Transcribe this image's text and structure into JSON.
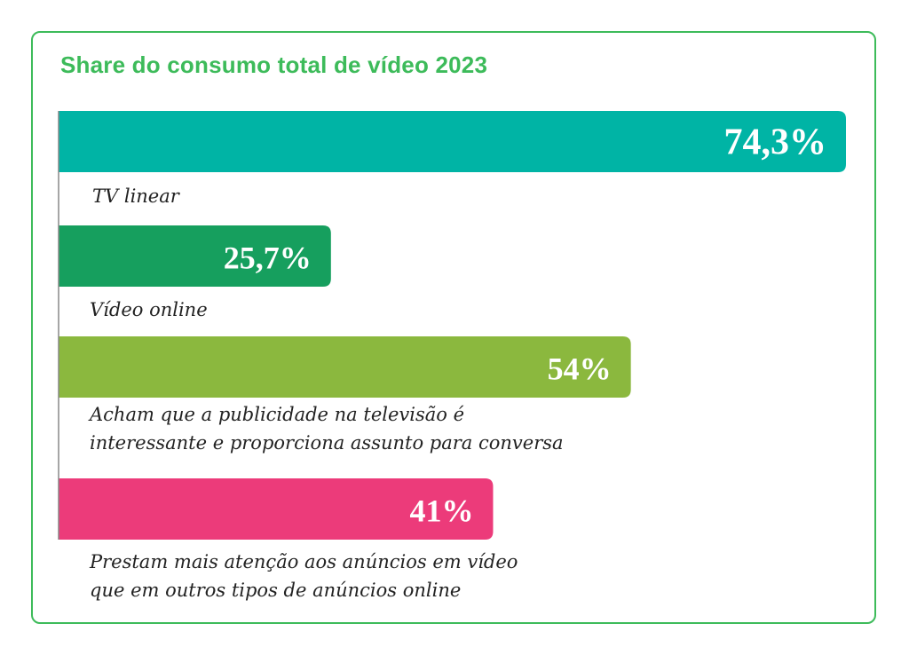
{
  "chart_data": {
    "type": "bar",
    "orientation": "horizontal",
    "title": "Share do consumo total de vídeo 2023",
    "xlim": [
      0,
      100
    ],
    "grid": false,
    "legend": "none",
    "bars": [
      {
        "label_lines": [
          "TV linear"
        ],
        "value": 74.3,
        "value_label": "74,3%",
        "color": "#00b4a5"
      },
      {
        "label_lines": [
          "Vídeo online"
        ],
        "value": 25.7,
        "value_label": "25,7%",
        "color": "#169f5e"
      },
      {
        "label_lines": [
          "Acham que a publicidade na televisão é",
          "interessante e proporciona assunto para conversa"
        ],
        "value": 54,
        "value_label": "54%",
        "color": "#8bb83e"
      },
      {
        "label_lines": [
          "Prestam mais atenção aos anúncios em vídeo",
          "que em outros tipos de anúncios online"
        ],
        "value": 41,
        "value_label": "41%",
        "color": "#ec3b7a"
      }
    ]
  }
}
